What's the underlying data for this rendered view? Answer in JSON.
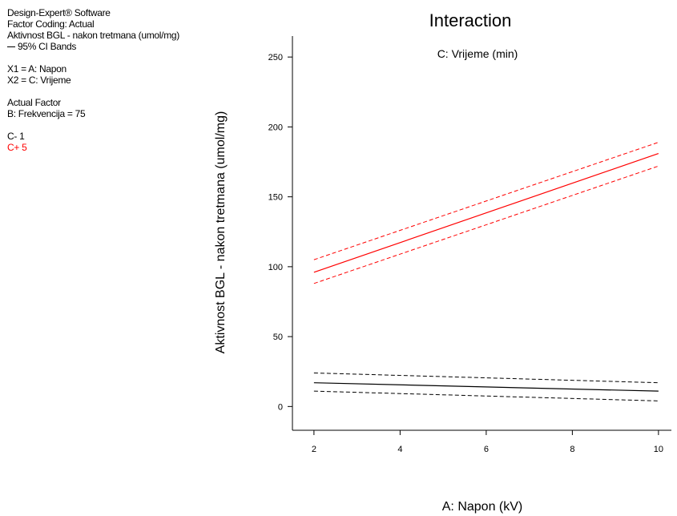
{
  "legend": {
    "software": "Design-Expert® Software",
    "coding": "Factor Coding: Actual",
    "response": "Aktivnost BGL - nakon tretmana (umol/mg)",
    "ci": "95% CI Bands",
    "x1": "X1 = A: Napon",
    "x2": "X2 = C: Vrijeme",
    "actual_factor_title": "Actual Factor",
    "actual_factor": "B: Frekvencija = 75",
    "series_low": "C- 1",
    "series_high": "C+ 5"
  },
  "colors": {
    "low": "#000000",
    "high": "#ff0000"
  },
  "chart_data": {
    "type": "line",
    "title": "Interaction",
    "subtitle": "C: Vrijeme (min)",
    "xlabel": "A: Napon (kV)",
    "ylabel": "Aktivnost BGL - nakon tretmana (umol/mg)",
    "xlim": [
      1.5,
      10.3
    ],
    "ylim": [
      -17,
      265
    ],
    "xticks": [
      2,
      4,
      6,
      8,
      10
    ],
    "yticks": [
      0,
      50,
      100,
      150,
      200,
      250
    ],
    "grid": false,
    "series": [
      {
        "name": "C- 1",
        "color": "#000000",
        "x": [
          2,
          10
        ],
        "y": [
          17,
          11
        ],
        "lower": [
          11,
          4
        ],
        "upper": [
          24,
          17
        ]
      },
      {
        "name": "C+ 5",
        "color": "#ff0000",
        "x": [
          2,
          10
        ],
        "y": [
          96,
          181
        ],
        "lower": [
          88,
          172
        ],
        "upper": [
          105,
          189
        ]
      }
    ]
  }
}
